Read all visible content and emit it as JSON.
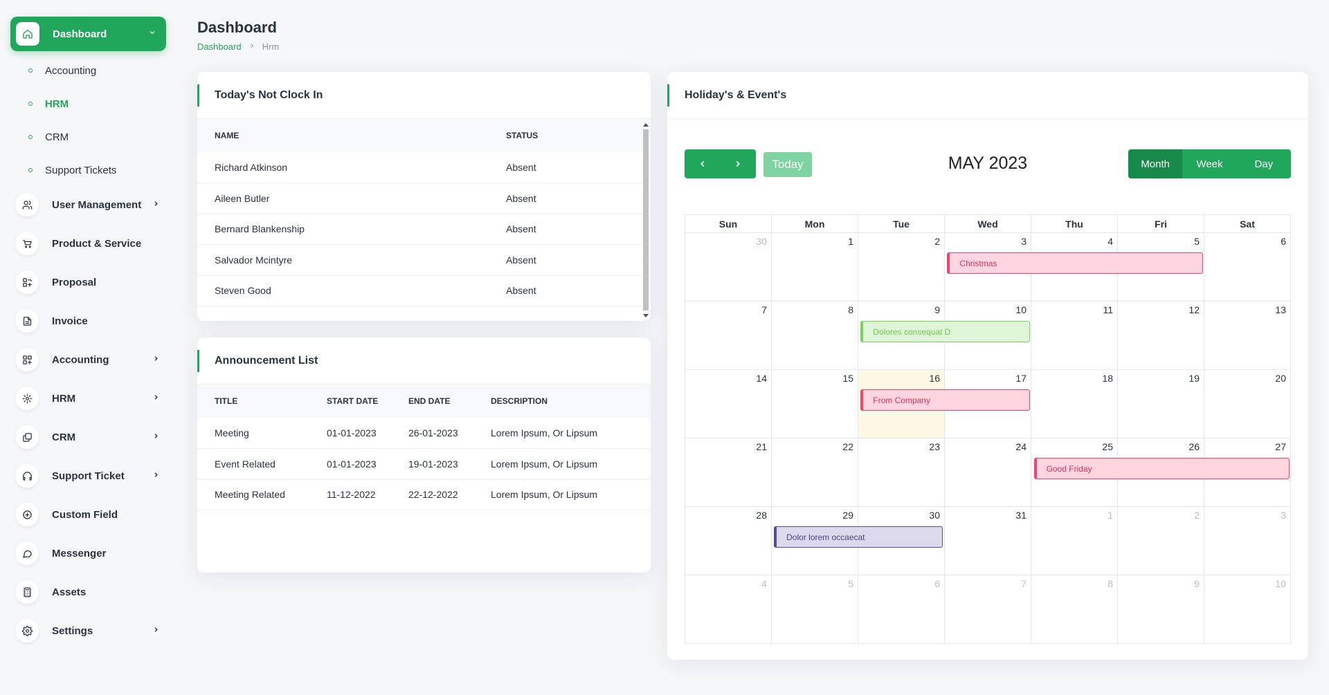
{
  "sidebar": {
    "dashboard": {
      "label": "Dashboard",
      "icon": "home-icon"
    },
    "submenu": [
      {
        "label": "Accounting",
        "active": false
      },
      {
        "label": "HRM",
        "active": true
      },
      {
        "label": "CRM",
        "active": false
      },
      {
        "label": "Support Tickets",
        "active": false
      }
    ],
    "items": [
      {
        "label": "User Management",
        "icon": "users-icon",
        "has_children": true
      },
      {
        "label": "Product & Service",
        "icon": "cart-icon",
        "has_children": false
      },
      {
        "label": "Proposal",
        "icon": "proposal-icon",
        "has_children": false
      },
      {
        "label": "Invoice",
        "icon": "invoice-icon",
        "has_children": false
      },
      {
        "label": "Accounting",
        "icon": "grid-icon",
        "has_children": true
      },
      {
        "label": "HRM",
        "icon": "hrm-icon",
        "has_children": true
      },
      {
        "label": "CRM",
        "icon": "layers-icon",
        "has_children": true
      },
      {
        "label": "Support Ticket",
        "icon": "headphones-icon",
        "has_children": true
      },
      {
        "label": "Custom Field",
        "icon": "plus-circle-icon",
        "has_children": false
      },
      {
        "label": "Messenger",
        "icon": "message-icon",
        "has_children": false
      },
      {
        "label": "Assets",
        "icon": "calculator-icon",
        "has_children": false
      },
      {
        "label": "Settings",
        "icon": "gear-icon",
        "has_children": true
      }
    ]
  },
  "header": {
    "title": "Dashboard",
    "breadcrumb": [
      "Dashboard",
      "Hrm"
    ]
  },
  "clock_in": {
    "title": "Today's Not Clock In",
    "columns": [
      "NAME",
      "STATUS"
    ],
    "rows": [
      {
        "name": "Richard Atkinson",
        "status": "Absent"
      },
      {
        "name": "Aileen Butler",
        "status": "Absent"
      },
      {
        "name": "Bernard Blankenship",
        "status": "Absent"
      },
      {
        "name": "Salvador Mcintyre",
        "status": "Absent"
      },
      {
        "name": "Steven Good",
        "status": "Absent"
      }
    ]
  },
  "announcements": {
    "title": "Announcement List",
    "columns": [
      "TITLE",
      "START DATE",
      "END DATE",
      "DESCRIPTION"
    ],
    "rows": [
      {
        "title": "Meeting",
        "start": "01-01-2023",
        "end": "26-01-2023",
        "description": "Lorem Ipsum, Or Lipsum"
      },
      {
        "title": "Event Related",
        "start": "01-01-2023",
        "end": "19-01-2023",
        "description": "Lorem Ipsum, Or Lipsum"
      },
      {
        "title": "Meeting Related",
        "start": "11-12-2022",
        "end": "22-12-2022",
        "description": "Lorem Ipsum, Or Lipsum"
      }
    ]
  },
  "calendar": {
    "card_title": "Holiday's & Event's",
    "title": "MAY 2023",
    "today_label": "Today",
    "views": [
      {
        "label": "Month",
        "active": true
      },
      {
        "label": "Week",
        "active": false
      },
      {
        "label": "Day",
        "active": false
      }
    ],
    "weekdays": [
      "Sun",
      "Mon",
      "Tue",
      "Wed",
      "Thu",
      "Fri",
      "Sat"
    ],
    "weeks": [
      [
        "30",
        "1",
        "2",
        "3",
        "4",
        "5",
        "6"
      ],
      [
        "7",
        "8",
        "9",
        "10",
        "11",
        "12",
        "13"
      ],
      [
        "14",
        "15",
        "16",
        "17",
        "18",
        "19",
        "20"
      ],
      [
        "21",
        "22",
        "23",
        "24",
        "25",
        "26",
        "27"
      ],
      [
        "28",
        "29",
        "30",
        "31",
        "1",
        "2",
        "3"
      ],
      [
        "4",
        "5",
        "6",
        "7",
        "8",
        "9",
        "10"
      ]
    ],
    "today": {
      "week": 2,
      "day": 2
    },
    "events": [
      {
        "title": "Christmas",
        "week": 0,
        "start_day": 3,
        "span": 3,
        "bg": "#ffd6e0",
        "border": "#f0446f",
        "text": "#e0315f"
      },
      {
        "title": "Dolores consequat D",
        "week": 1,
        "start_day": 2,
        "span": 2,
        "bg": "#dff5d8",
        "border": "#7bd35b",
        "text": "#6fcd4f"
      },
      {
        "title": "From Company",
        "week": 2,
        "start_day": 2,
        "span": 2,
        "bg": "#ffd6e0",
        "border": "#f0446f",
        "text": "#e0315f"
      },
      {
        "title": "Good Friday",
        "week": 3,
        "start_day": 4,
        "span": 3,
        "bg": "#ffd6e0",
        "border": "#f0446f",
        "text": "#e0315f"
      },
      {
        "title": "Dolor lorem occaecat",
        "week": 4,
        "start_day": 1,
        "span": 2,
        "bg": "#dcd9ec",
        "border": "#554a9b",
        "text": "#4a4088"
      }
    ]
  },
  "colors": {
    "accent": "#20a75b"
  }
}
